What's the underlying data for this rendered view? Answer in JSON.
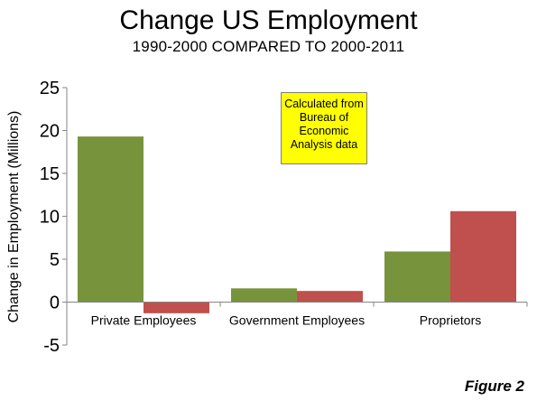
{
  "chart_data": {
    "type": "bar",
    "title": "Change US Employment",
    "subtitle": "1990-2000 COMPARED TO 2000-2011",
    "ylabel": "Change in Employment (Millions)",
    "categories": [
      "Private Employees",
      "Government Employees",
      "Proprietors"
    ],
    "series": [
      {
        "values": [
          19.3,
          1.6,
          5.9
        ],
        "color": "#77933c"
      },
      {
        "values": [
          -1.3,
          1.3,
          10.6
        ],
        "color": "#c0504d"
      }
    ],
    "ylim": [
      -5,
      25
    ],
    "yticks": [
      -5,
      0,
      5,
      10,
      15,
      20,
      25
    ],
    "grid": false,
    "annotation": "Calculated from Bureau of Economic Analysis data",
    "annotation_color": "#ffff00"
  },
  "figure_label": "Figure 2"
}
